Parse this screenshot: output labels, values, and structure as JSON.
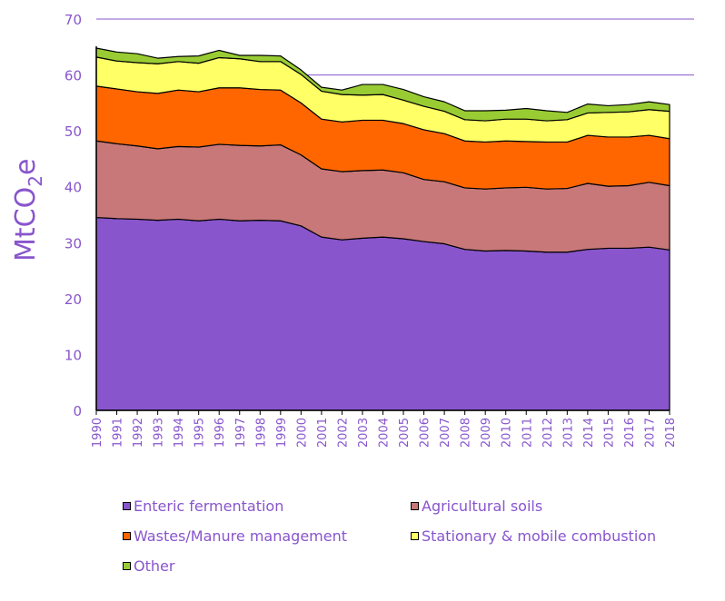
{
  "chart_data": {
    "type": "area",
    "stacked": true,
    "title": "",
    "xlabel": "",
    "ylabel": "MtCO2e",
    "ylabel_parts": {
      "main": "MtCO",
      "sub": "2",
      "tail": "e"
    },
    "ylim": [
      0,
      70
    ],
    "yticks": [
      0,
      10,
      20,
      30,
      40,
      50,
      60,
      70
    ],
    "gridlines_at": [
      60,
      70
    ],
    "x": [
      "1990",
      "1991",
      "1992",
      "1993",
      "1994",
      "1995",
      "1996",
      "1997",
      "1998",
      "1999",
      "2000",
      "2001",
      "2002",
      "2003",
      "2004",
      "2005",
      "2006",
      "2007",
      "2008",
      "2009",
      "2010",
      "2011",
      "2012",
      "2013",
      "2014",
      "2015",
      "2016",
      "2017",
      "2018"
    ],
    "series": [
      {
        "name": "Enteric fermentation",
        "color": "#8855cc",
        "values": [
          34.5,
          34.3,
          34.2,
          34.0,
          34.2,
          33.9,
          34.2,
          33.9,
          34.0,
          33.9,
          33.0,
          31.0,
          30.5,
          30.8,
          31.0,
          30.7,
          30.2,
          29.8,
          28.8,
          28.5,
          28.6,
          28.5,
          28.3,
          28.3,
          28.8,
          29.0,
          29.0,
          29.2,
          28.7
        ]
      },
      {
        "name": "Agricultural soils",
        "color": "#c87878",
        "values": [
          13.7,
          13.4,
          13.1,
          12.8,
          13.0,
          13.2,
          13.4,
          13.5,
          13.3,
          13.6,
          12.7,
          12.2,
          12.2,
          12.1,
          12.0,
          11.8,
          11.1,
          11.1,
          11.0,
          11.1,
          11.2,
          11.4,
          11.3,
          11.4,
          11.8,
          11.1,
          11.2,
          11.6,
          11.5
        ]
      },
      {
        "name": "Wastes/Manure management",
        "color": "#ff6600",
        "values": [
          9.8,
          9.8,
          9.7,
          9.9,
          10.1,
          9.9,
          10.1,
          10.3,
          10.1,
          9.8,
          9.3,
          8.9,
          8.9,
          9.0,
          8.9,
          8.8,
          8.9,
          8.6,
          8.4,
          8.4,
          8.4,
          8.2,
          8.4,
          8.3,
          8.6,
          8.8,
          8.7,
          8.4,
          8.4
        ]
      },
      {
        "name": "Stationary & mobile combustion",
        "color": "#ffff66",
        "values": [
          5.2,
          5.0,
          5.2,
          5.3,
          5.1,
          5.1,
          5.4,
          5.2,
          5.0,
          5.1,
          5.1,
          5.0,
          4.9,
          4.5,
          4.6,
          4.2,
          4.2,
          4.0,
          3.8,
          3.8,
          3.9,
          4.0,
          3.8,
          4.0,
          4.0,
          4.4,
          4.5,
          4.6,
          4.9
        ]
      },
      {
        "name": "Other",
        "color": "#99cc33",
        "values": [
          1.6,
          1.6,
          1.6,
          1.0,
          0.9,
          1.3,
          1.3,
          0.6,
          1.1,
          1.0,
          0.8,
          0.7,
          0.8,
          1.9,
          1.8,
          1.9,
          1.7,
          1.7,
          1.6,
          1.8,
          1.6,
          1.9,
          1.8,
          1.3,
          1.6,
          1.2,
          1.3,
          1.4,
          1.2
        ]
      }
    ]
  },
  "legend": {
    "items": [
      {
        "label": "Enteric fermentation",
        "color": "#8855cc"
      },
      {
        "label": "Agricultural soils",
        "color": "#c87878"
      },
      {
        "label": "Wastes/Manure management",
        "color": "#ff6600"
      },
      {
        "label": "Stationary & mobile combustion",
        "color": "#ffff66"
      },
      {
        "label": "Other",
        "color": "#99cc33"
      }
    ]
  },
  "colors": {
    "axis_text": "#8855cc",
    "gridline": "#8855cc",
    "outline": "#000000"
  }
}
